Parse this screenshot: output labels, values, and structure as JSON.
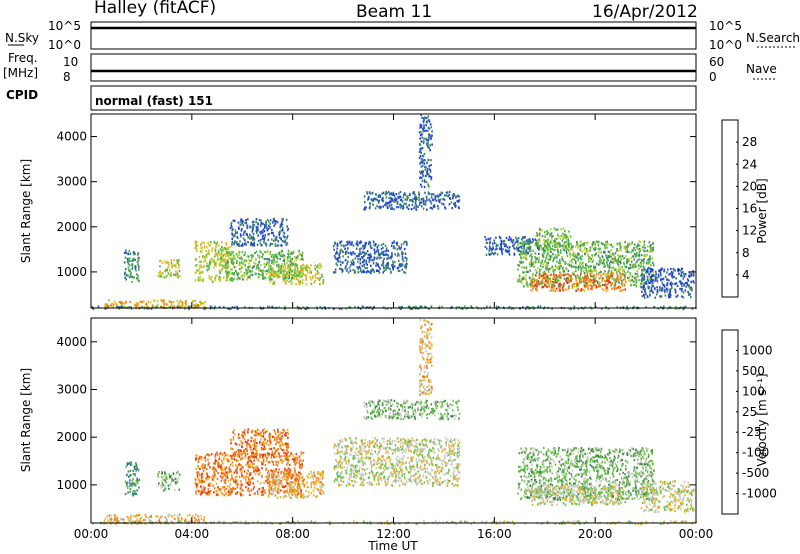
{
  "header": {
    "station": "Halley (fitACF)",
    "beam": "Beam 11",
    "date": "16/Apr/2012"
  },
  "status_panels": {
    "nsky_label": "N.Sky",
    "nsky_ticks": [
      "10^5",
      "10^0"
    ],
    "nsearch_label": "N.Search",
    "nsearch_ticks": [
      "10^5",
      "10^0"
    ],
    "freq_label": "Freq.",
    "freq_unit": "[MHz]",
    "freq_ticks": [
      "10",
      "8"
    ],
    "nave_label": "Nave",
    "nave_ticks": [
      "60",
      "0"
    ],
    "cpid_label": "CPID",
    "cpid_value": "normal (fast) 151"
  },
  "chart_data": [
    {
      "type": "heatmap",
      "name": "power",
      "ylabel": "Slant Range [km]",
      "yticks": [
        1000,
        2000,
        3000,
        4000
      ],
      "ylim": [
        200,
        4500
      ],
      "xlim": [
        0,
        24
      ],
      "colorbar": {
        "label": "Power [dB]",
        "ticks": [
          "4",
          "8",
          "12",
          "16",
          "20",
          "24",
          "28"
        ],
        "colors": [
          "#1f35e8",
          "#2c5fb0",
          "#3d8a5a",
          "#4fb84f",
          "#b8cc2a",
          "#f0b020",
          "#f07a18",
          "#e83a18"
        ]
      },
      "regions": [
        {
          "t0": 1.3,
          "t1": 1.9,
          "r0": 800,
          "r1": 1500,
          "level": 2
        },
        {
          "t0": 2.6,
          "t1": 3.5,
          "r0": 900,
          "r1": 1300,
          "level": 4
        },
        {
          "t0": 4.1,
          "t1": 5.6,
          "r0": 800,
          "r1": 1700,
          "level": 4
        },
        {
          "t0": 5.3,
          "t1": 8.4,
          "r0": 850,
          "r1": 1500,
          "level": 3
        },
        {
          "t0": 7.0,
          "t1": 9.2,
          "r0": 750,
          "r1": 1200,
          "level": 4
        },
        {
          "t0": 5.5,
          "t1": 7.8,
          "r0": 1600,
          "r1": 2200,
          "level": 1
        },
        {
          "t0": 9.6,
          "t1": 12.5,
          "r0": 1000,
          "r1": 1700,
          "level": 1
        },
        {
          "t0": 10.8,
          "t1": 14.6,
          "r0": 2400,
          "r1": 2800,
          "level": 1
        },
        {
          "t0": 13.0,
          "t1": 13.5,
          "r0": 2900,
          "r1": 4500,
          "level": 1
        },
        {
          "t0": 15.6,
          "t1": 17.8,
          "r0": 1400,
          "r1": 1800,
          "level": 1
        },
        {
          "t0": 16.9,
          "t1": 22.3,
          "r0": 700,
          "r1": 1700,
          "level": 3
        },
        {
          "t0": 17.4,
          "t1": 21.2,
          "r0": 600,
          "r1": 1000,
          "level": 6
        },
        {
          "t0": 17.6,
          "t1": 19.0,
          "r0": 1500,
          "r1": 2000,
          "level": 3
        },
        {
          "t0": 21.8,
          "t1": 23.9,
          "r0": 450,
          "r1": 1100,
          "level": 1
        },
        {
          "t0": 0.5,
          "t1": 4.5,
          "r0": 220,
          "r1": 400,
          "level": 5
        },
        {
          "t0": 0.0,
          "t1": 24.0,
          "r0": 200,
          "r1": 260,
          "level": 2
        }
      ]
    },
    {
      "type": "heatmap",
      "name": "velocity",
      "ylabel": "Slant Range [km]",
      "yticks": [
        1000,
        2000,
        3000,
        4000
      ],
      "ylim": [
        200,
        4500
      ],
      "xlim": [
        0,
        24
      ],
      "colorbar": {
        "label": "Velocity [m s⁻¹]",
        "ticks": [
          "1000",
          "500",
          "100",
          "25",
          "-25",
          "-100",
          "-500",
          "-1000"
        ],
        "colors": [
          "#2040c8",
          "#2a7ab8",
          "#3d8a4a",
          "#6cc04a",
          "#c8c8c0",
          "#f0b020",
          "#f07a18",
          "#e83a18",
          "#e81818"
        ]
      },
      "regions": [
        {
          "t0": 1.3,
          "t1": 1.9,
          "r0": 800,
          "r1": 1500,
          "level": 2
        },
        {
          "t0": 2.6,
          "t1": 3.5,
          "r0": 900,
          "r1": 1300,
          "level": 3
        },
        {
          "t0": 4.1,
          "t1": 8.4,
          "r0": 800,
          "r1": 1700,
          "level": 6
        },
        {
          "t0": 7.0,
          "t1": 9.2,
          "r0": 750,
          "r1": 1300,
          "level": 5
        },
        {
          "t0": 5.5,
          "t1": 7.8,
          "r0": 1600,
          "r1": 2200,
          "level": 6
        },
        {
          "t0": 9.6,
          "t1": 14.6,
          "r0": 1000,
          "r1": 2000,
          "level": 4
        },
        {
          "t0": 10.8,
          "t1": 14.6,
          "r0": 2400,
          "r1": 2800,
          "level": 3
        },
        {
          "t0": 13.0,
          "t1": 13.5,
          "r0": 2900,
          "r1": 4500,
          "level": 5
        },
        {
          "t0": 16.9,
          "t1": 22.3,
          "r0": 700,
          "r1": 1800,
          "level": 3
        },
        {
          "t0": 17.4,
          "t1": 21.2,
          "r0": 600,
          "r1": 1000,
          "level": 4
        },
        {
          "t0": 21.8,
          "t1": 23.9,
          "r0": 450,
          "r1": 1100,
          "level": 4
        },
        {
          "t0": 0.5,
          "t1": 4.5,
          "r0": 220,
          "r1": 400,
          "level": 5
        },
        {
          "t0": 0.0,
          "t1": 24.0,
          "r0": 200,
          "r1": 260,
          "level": 4
        }
      ]
    }
  ],
  "xaxis": {
    "label": "Time UT",
    "ticks": [
      "00:00",
      "04:00",
      "08:00",
      "12:00",
      "16:00",
      "20:00",
      "00:00"
    ],
    "tick_hours": [
      0,
      4,
      8,
      12,
      16,
      20,
      24
    ]
  }
}
